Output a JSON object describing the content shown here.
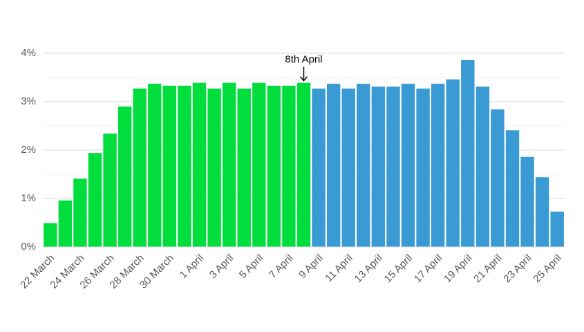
{
  "chart_data": {
    "type": "bar",
    "categories": [
      "22 March",
      null,
      "24 March",
      null,
      "26 March",
      null,
      "28 March",
      null,
      "30 March",
      null,
      "1 April",
      null,
      "3 April",
      null,
      "5 April",
      null,
      "7 April",
      null,
      "9 April",
      null,
      "11 April",
      null,
      "13 April",
      null,
      "15 April",
      null,
      "17 April",
      null,
      "19 April",
      null,
      "21 April",
      null,
      "23 April",
      null,
      "25 April"
    ],
    "series": [
      {
        "color": "#00dd3c",
        "values": [
          0.49,
          0.96,
          1.41,
          1.94,
          2.34,
          2.9,
          3.27,
          3.37,
          3.33,
          3.33,
          3.39,
          3.27,
          3.39,
          3.27,
          3.39,
          3.33,
          3.33,
          3.39,
          null,
          null,
          null,
          null,
          null,
          null,
          null,
          null,
          null,
          null,
          null,
          null,
          null,
          null,
          null,
          null,
          null
        ]
      },
      {
        "color": "#3a9ad4",
        "values": [
          null,
          null,
          null,
          null,
          null,
          null,
          null,
          null,
          null,
          null,
          null,
          null,
          null,
          null,
          null,
          null,
          null,
          null,
          3.27,
          3.37,
          3.27,
          3.37,
          3.31,
          3.31,
          3.37,
          3.27,
          3.37,
          3.46,
          3.86,
          3.31,
          2.84,
          2.41,
          1.86,
          1.44,
          0.73
        ]
      }
    ],
    "ylim": [
      0,
      4
    ],
    "yticks": [
      {
        "value": 0,
        "label": "0%"
      },
      {
        "value": 1,
        "label": "1%"
      },
      {
        "value": 2,
        "label": "2%"
      },
      {
        "value": 3,
        "label": "3%"
      },
      {
        "value": 4,
        "label": "4%"
      }
    ],
    "minor_yticks": [
      0.5,
      1.5,
      2.5,
      3.5
    ],
    "grid": true,
    "annotation": {
      "text": "8th April",
      "index": 17
    }
  }
}
